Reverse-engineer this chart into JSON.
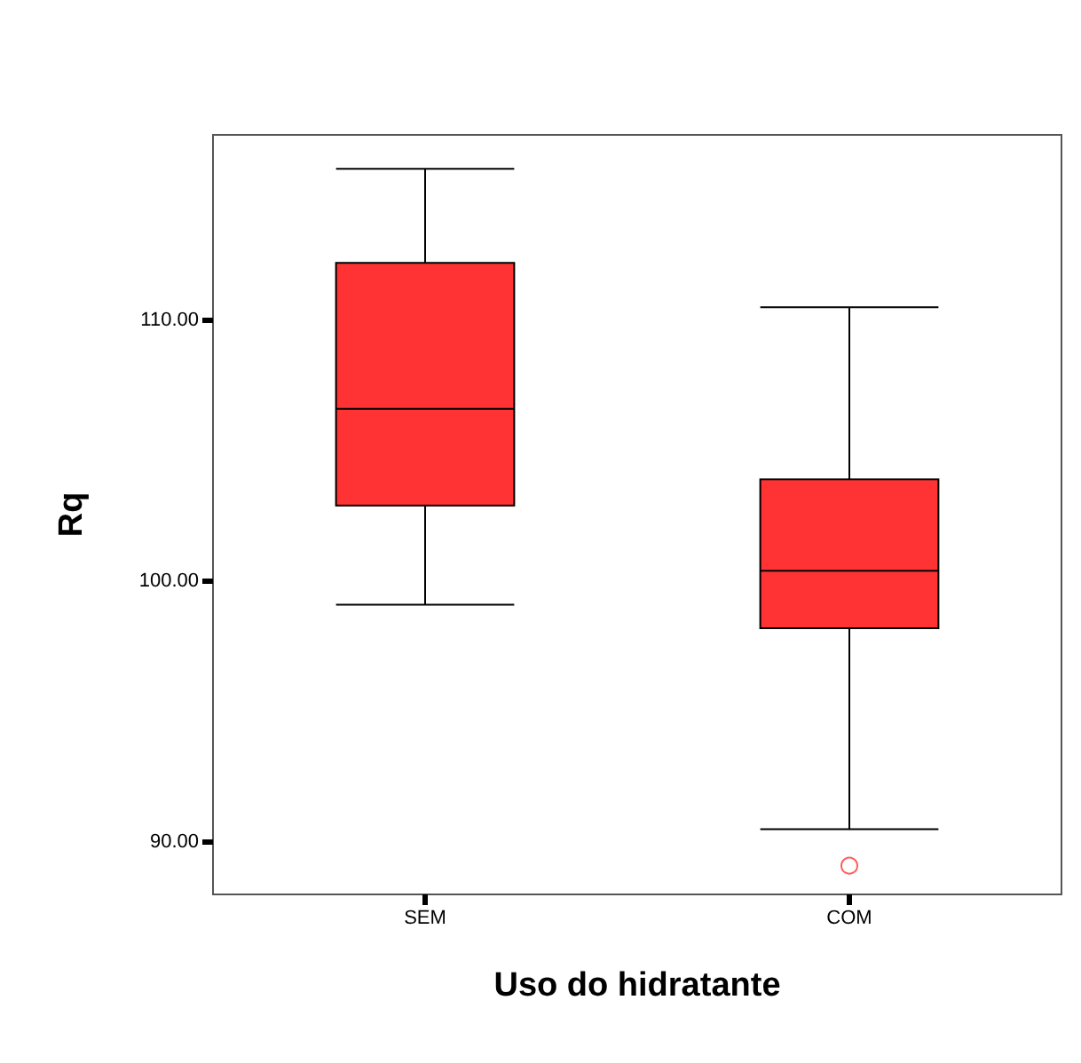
{
  "chart_data": {
    "type": "box",
    "xlabel": "Uso do hidratante",
    "ylabel": "Rq",
    "categories": [
      "SEM",
      "COM"
    ],
    "series": [
      {
        "color": "#ff3333",
        "boxes": [
          {
            "low": 99.1,
            "q1": 102.9,
            "median": 106.6,
            "q3": 112.2,
            "high": 115.8
          },
          {
            "low": 90.5,
            "q1": 98.2,
            "median": 100.4,
            "q3": 103.9,
            "high": 110.5,
            "outliers": [
              89.1
            ]
          }
        ]
      }
    ],
    "ylim": [
      88,
      117.1
    ],
    "yticks": [
      {
        "value": 90,
        "label": "90.00"
      },
      {
        "value": 100,
        "label": "100.00"
      },
      {
        "value": 110,
        "label": "110.00"
      }
    ],
    "grid": false
  }
}
